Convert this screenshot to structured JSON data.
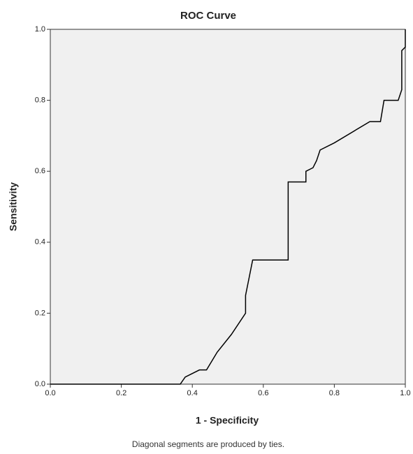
{
  "chart_data": {
    "type": "line",
    "title": "ROC Curve",
    "x_label": "1 - Specificity",
    "y_label": "Sensitivity",
    "footnote": "Diagonal segments are produced by ties.",
    "x": [
      0,
      0.366,
      0.38,
      0.42,
      0.44,
      0.47,
      0.51,
      0.55,
      0.55,
      0.56,
      0.57,
      0.67,
      0.67,
      0.72,
      0.72,
      0.74,
      0.75,
      0.76,
      0.8,
      0.9,
      0.93,
      0.94,
      0.98,
      0.99,
      0.99,
      1,
      1
    ],
    "values": [
      0,
      0,
      0.02,
      0.04,
      0.04,
      0.09,
      0.14,
      0.2,
      0.25,
      0.3,
      0.35,
      0.35,
      0.57,
      0.57,
      0.6,
      0.61,
      0.63,
      0.66,
      0.68,
      0.74,
      0.74,
      0.8,
      0.8,
      0.83,
      0.94,
      0.95,
      1
    ],
    "color": "#000000",
    "xlim": [
      0,
      1
    ],
    "ylim": [
      0,
      1
    ],
    "xticks": [
      {
        "value": 0,
        "label": "0.0"
      },
      {
        "value": 0.2,
        "label": "0.2"
      },
      {
        "value": 0.4,
        "label": "0.4"
      },
      {
        "value": 0.6,
        "label": "0.6"
      },
      {
        "value": 0.8,
        "label": "0.8"
      },
      {
        "value": 1,
        "label": "1.0"
      }
    ],
    "yticks": [
      {
        "value": 0,
        "label": "0.0"
      },
      {
        "value": 0.2,
        "label": "0.2"
      },
      {
        "value": 0.4,
        "label": "0.4"
      },
      {
        "value": 0.6,
        "label": "0.6"
      },
      {
        "value": 0.8,
        "label": "0.8"
      },
      {
        "value": 1,
        "label": "1.0"
      }
    ]
  }
}
